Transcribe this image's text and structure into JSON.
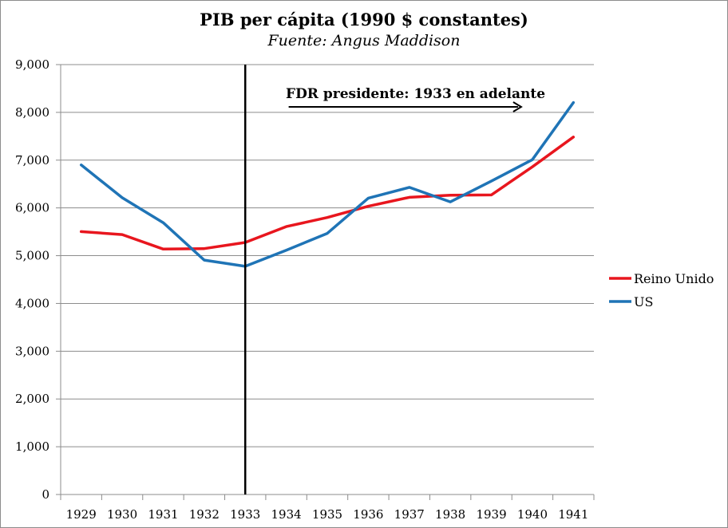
{
  "chart_data": {
    "type": "line",
    "title": "PIB per cápita (1990 $ constantes)",
    "subtitle": "Fuente: Angus Maddison",
    "xlabel": "",
    "ylabel": "",
    "categories": [
      "1929",
      "1930",
      "1931",
      "1932",
      "1933",
      "1934",
      "1935",
      "1936",
      "1937",
      "1938",
      "1939",
      "1940",
      "1941"
    ],
    "ylim": [
      0,
      9000
    ],
    "yticks": [
      0,
      1000,
      2000,
      3000,
      4000,
      5000,
      6000,
      7000,
      8000,
      9000
    ],
    "ytick_labels": [
      "0",
      "1,000",
      "2,000",
      "3,000",
      "4,000",
      "5,000",
      "6,000",
      "7,000",
      "8,000",
      "9,000"
    ],
    "grid": true,
    "legend_position": "right",
    "series": [
      {
        "name": "Reino Unido",
        "color": "#e8161e",
        "values": [
          5503,
          5441,
          5138,
          5148,
          5277,
          5608,
          5799,
          6035,
          6221,
          6266,
          6272,
          6860,
          7484
        ]
      },
      {
        "name": "US",
        "color": "#1f74b6",
        "values": [
          6899,
          6213,
          5691,
          4908,
          4777,
          5114,
          5467,
          6204,
          6430,
          6126,
          6561,
          7010,
          8206
        ]
      }
    ],
    "vline": {
      "category": "1933",
      "color": "#000000"
    },
    "annotation": {
      "text": "FDR presidente: 1933 en adelante",
      "arrow_from_category": "1934",
      "arrow_to_category": "1940"
    }
  }
}
